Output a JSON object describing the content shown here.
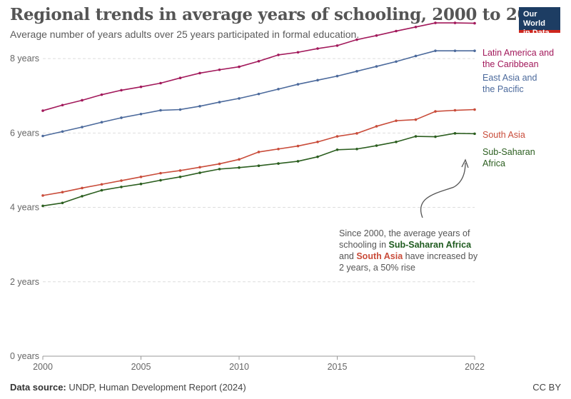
{
  "title": "Regional trends in average years of schooling, 2000 to 2022",
  "subtitle": "Average number of years adults over 25 years participated in formal education.",
  "logo": {
    "line1": "Our World",
    "line2": "in Data",
    "bg": "#1d3d63",
    "accent": "#ce261e"
  },
  "source_label": "Data source:",
  "source_text": "UNDP, Human Development Report (2024)",
  "license": "CC BY",
  "annotation": {
    "part1": "Since 2000, the average years of schooling in ",
    "ssa": "Sub-Saharan Africa",
    "part2": " and ",
    "sa": "South Asia",
    "part3": " have increased by 2 years, a 50% rise"
  },
  "chart_data": {
    "type": "line",
    "title": "Regional trends in average years of schooling, 2000 to 2022",
    "xlabel": "",
    "ylabel": "",
    "x": [
      2000,
      2001,
      2002,
      2003,
      2004,
      2005,
      2006,
      2007,
      2008,
      2009,
      2010,
      2011,
      2012,
      2013,
      2014,
      2015,
      2016,
      2017,
      2018,
      2019,
      2020,
      2021,
      2022
    ],
    "xticks": [
      2000,
      2005,
      2010,
      2015,
      2022
    ],
    "xtick_labels": [
      "2000",
      "2005",
      "2010",
      "2015",
      "2022"
    ],
    "yticks": [
      0,
      2,
      4,
      6,
      8
    ],
    "ytick_labels": [
      "0 years",
      "2 years",
      "4 years",
      "6 years",
      "8 years"
    ],
    "xlim": [
      2000,
      2022
    ],
    "ylim": [
      0,
      9
    ],
    "grid": "horizontal dashed",
    "legend": "right-end labels",
    "series": [
      {
        "name": "Latin America and the Caribbean",
        "label_lines": [
          "Latin America and",
          "the Caribbean"
        ],
        "color": "#a2195b",
        "values": [
          6.6,
          6.75,
          6.88,
          7.03,
          7.15,
          7.24,
          7.34,
          7.48,
          7.61,
          7.7,
          7.78,
          7.93,
          8.1,
          8.17,
          8.27,
          8.35,
          8.51,
          8.62,
          8.74,
          8.85,
          8.96,
          8.96,
          8.95
        ]
      },
      {
        "name": "East Asia and the Pacific",
        "label_lines": [
          "East Asia and",
          "the Pacific"
        ],
        "color": "#4c6a9c",
        "values": [
          5.92,
          6.04,
          6.16,
          6.29,
          6.41,
          6.51,
          6.61,
          6.63,
          6.72,
          6.83,
          6.93,
          7.05,
          7.18,
          7.31,
          7.42,
          7.53,
          7.66,
          7.79,
          7.92,
          8.07,
          8.21,
          8.21,
          8.21
        ]
      },
      {
        "name": "South Asia",
        "label_lines": [
          "South Asia"
        ],
        "color": "#c94c3a",
        "values": [
          4.32,
          4.41,
          4.52,
          4.62,
          4.72,
          4.82,
          4.92,
          4.99,
          5.08,
          5.17,
          5.29,
          5.49,
          5.57,
          5.65,
          5.76,
          5.91,
          5.99,
          6.18,
          6.33,
          6.36,
          6.58,
          6.61,
          6.63
        ]
      },
      {
        "name": "Sub-Saharan Africa",
        "label_lines": [
          "Sub-Saharan",
          "Africa"
        ],
        "color": "#2b5e1f",
        "values": [
          4.04,
          4.12,
          4.3,
          4.46,
          4.55,
          4.63,
          4.73,
          4.82,
          4.93,
          5.03,
          5.07,
          5.12,
          5.18,
          5.24,
          5.36,
          5.55,
          5.57,
          5.66,
          5.76,
          5.91,
          5.9,
          5.99,
          5.98
        ]
      }
    ]
  }
}
